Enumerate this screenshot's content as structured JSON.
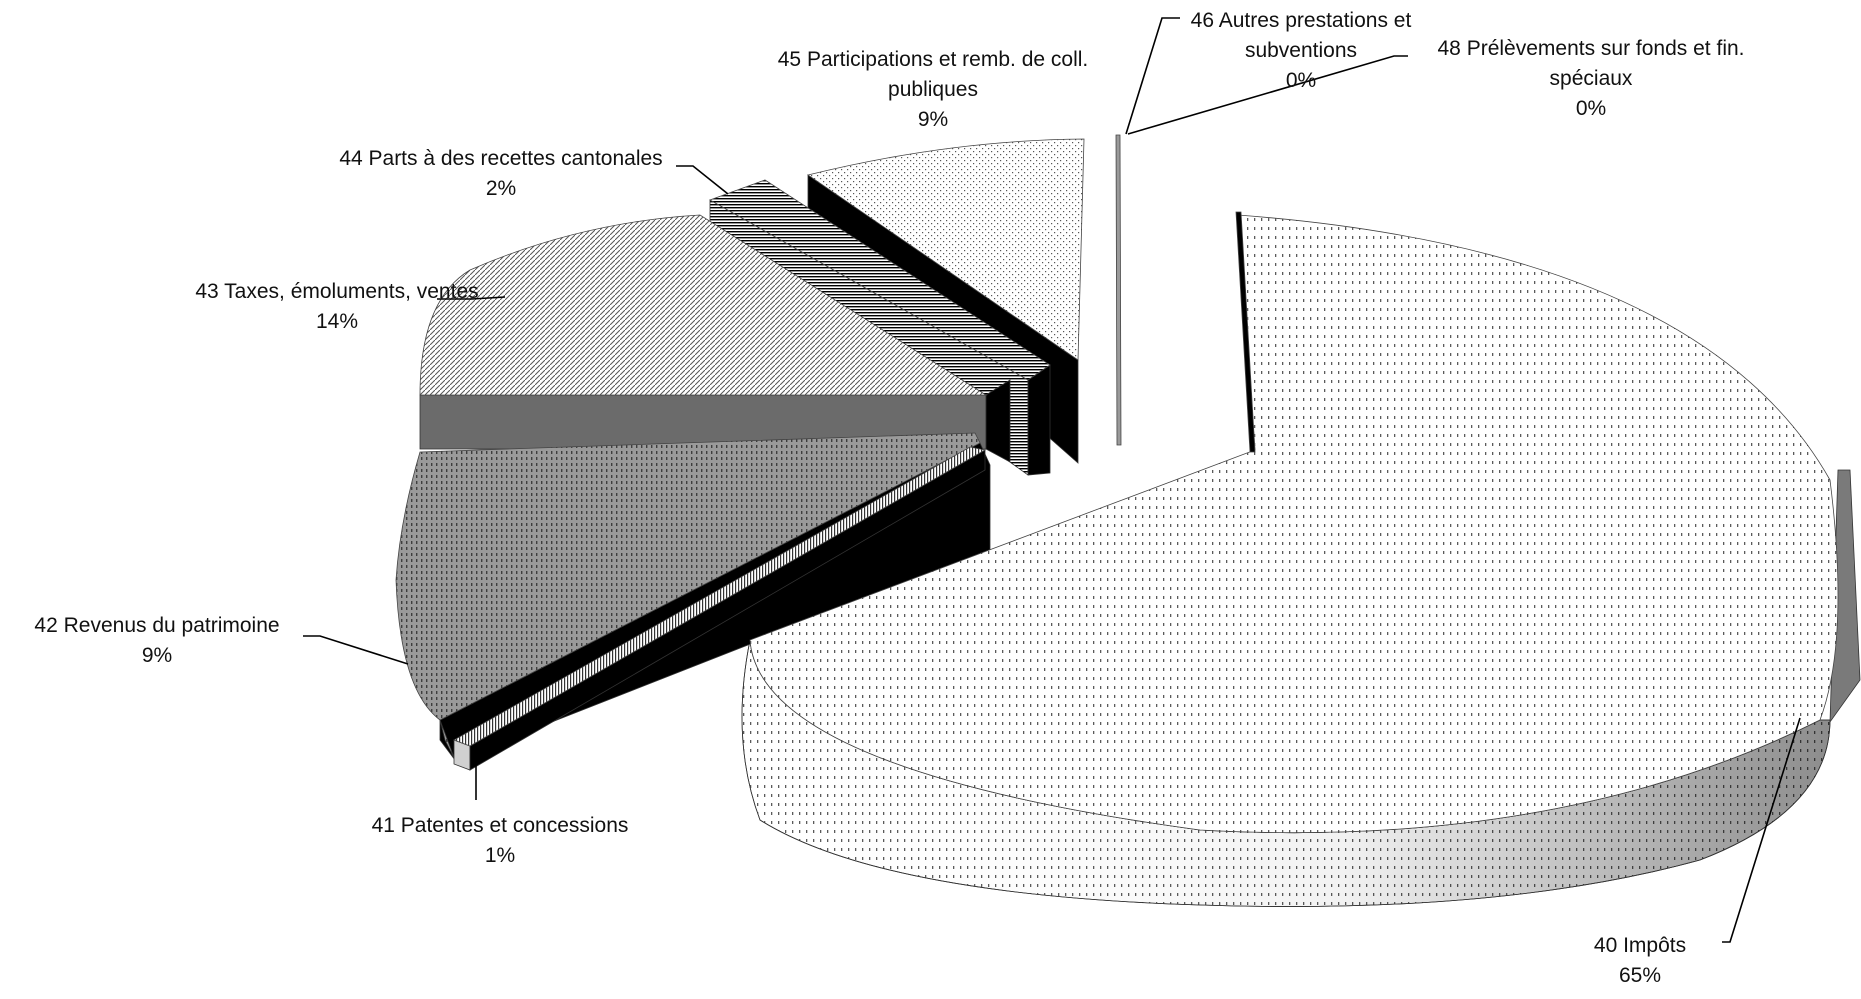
{
  "chart_data": {
    "type": "pie",
    "variant": "3d-exploded",
    "title": "",
    "legend": "none",
    "labels_show": "category-name-and-percent",
    "slices": [
      {
        "id": "s40",
        "name": "40 Impôts",
        "value": 65,
        "label": "65%"
      },
      {
        "id": "s41",
        "name": "41 Patentes et concessions",
        "value": 1,
        "label": "1%"
      },
      {
        "id": "s42",
        "name": "42 Revenus du patrimoine",
        "value": 9,
        "label": "9%"
      },
      {
        "id": "s43",
        "name": "43 Taxes, émoluments, ventes",
        "value": 14,
        "label": "14%"
      },
      {
        "id": "s44",
        "name": "44 Parts à des recettes cantonales",
        "value": 2,
        "label": "2%"
      },
      {
        "id": "s45",
        "name": "45 Participations et remb. de coll. publiques",
        "value": 9,
        "label": "9%"
      },
      {
        "id": "s46",
        "name": "46 Autres prestations et subventions",
        "value": 0,
        "label": "0%"
      },
      {
        "id": "s48",
        "name": "48 Prélèvements sur fonds et fin. spéciaux",
        "value": 0,
        "label": "0%"
      }
    ],
    "label_text": {
      "s40": {
        "lines": [
          "40 Impôts"
        ],
        "pct": "65%"
      },
      "s41": {
        "lines": [
          "41 Patentes et concessions"
        ],
        "pct": "1%"
      },
      "s42": {
        "lines": [
          "42 Revenus du patrimoine"
        ],
        "pct": "9%"
      },
      "s43": {
        "lines": [
          "43 Taxes, émoluments, ventes"
        ],
        "pct": "14%"
      },
      "s44": {
        "lines": [
          "44 Parts à des recettes cantonales"
        ],
        "pct": "2%"
      },
      "s45": {
        "lines": [
          "45 Participations et remb. de coll.",
          "publiques"
        ],
        "pct": "9%"
      },
      "s46": {
        "lines": [
          "46 Autres prestations et",
          "subventions"
        ],
        "pct": "0%"
      },
      "s48": {
        "lines": [
          "48 Prélèvements sur fonds et fin.",
          "spéciaux"
        ],
        "pct": "0%"
      }
    },
    "colors": {
      "s40": "#d9d9d9",
      "s41": "#111111",
      "s42": "#8c8c8c",
      "s43": "#cfcfcf",
      "s44": "#3a3a3a",
      "s45": "#e0e0e0",
      "s46": "#9a9a9a",
      "s48": "#555555"
    }
  }
}
